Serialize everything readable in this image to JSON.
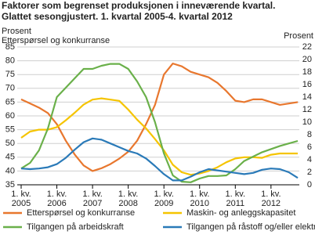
{
  "chart_data": {
    "type": "line",
    "title": "Faktorer som begrenset produksjonen i inneværende kvartal.",
    "subtitle": "Glattet sesongjustert. 1. kvartal 2005-4. kvartal 2012",
    "y_label": "Prosent",
    "y_series_label": "Etterspørsel og konkurranse",
    "y2_label": "Prosent",
    "categories": [
      "1. kv. 2005",
      null,
      null,
      null,
      "1. kv. 2006",
      null,
      null,
      null,
      "1. kv. 2007",
      null,
      null,
      null,
      "1. kv. 2008",
      null,
      null,
      null,
      "1. kv. 2009",
      null,
      null,
      null,
      "1. kv. 2010",
      null,
      null,
      null,
      "1. kv. 2011",
      null,
      null,
      null,
      "1. kv. 2012",
      null,
      null,
      null
    ],
    "ylim": [
      35,
      85
    ],
    "yticks": [
      35,
      40,
      45,
      50,
      55,
      60,
      65,
      70,
      75,
      80,
      85
    ],
    "y2lim": [
      0,
      22
    ],
    "y2ticks": [
      0,
      2,
      4,
      6,
      8,
      10,
      12,
      14,
      16,
      18,
      20,
      22
    ],
    "grid": true,
    "series": [
      {
        "name": "Etterspørsel og konkurranse",
        "color": "#e8772e",
        "values": [
          66,
          64.5,
          63,
          61,
          57,
          51,
          46,
          42,
          40,
          41,
          42.5,
          44.5,
          47,
          51,
          57,
          64,
          75,
          79,
          78,
          76,
          75,
          74,
          72,
          69,
          65.5,
          65,
          66,
          66,
          65,
          64,
          64.5,
          65
        ]
      },
      {
        "name": "Maskin- og anleggskapasitet",
        "color": "#f5c400",
        "axis": "y2",
        "values": [
          7.5,
          8.5,
          8.8,
          8.8,
          9.2,
          10.3,
          11.5,
          12.8,
          13.6,
          13.8,
          13.6,
          13.4,
          12,
          10.4,
          9,
          7.3,
          5.5,
          3.2,
          2.0,
          1.6,
          1.8,
          2.2,
          2.8,
          3.6,
          4.2,
          4.4,
          4.4,
          4.3,
          4.8,
          5.0,
          5.0,
          5.0
        ]
      },
      {
        "name": "Tilgangen på arbeidskraft",
        "color": "#6ab04a",
        "axis": "y2",
        "values": [
          2.6,
          3.5,
          5.5,
          9,
          14,
          15.5,
          17,
          18.5,
          18.5,
          19,
          19.3,
          19.3,
          18.5,
          16.5,
          14,
          10,
          5,
          1.5,
          0.5,
          0.4,
          1,
          1.4,
          1.4,
          1.5,
          2.5,
          3.8,
          4.5,
          5.2,
          5.7,
          6.2,
          6.6,
          7
        ]
      },
      {
        "name": "Tilgangen på råstoff og/eller elektrisk kraft",
        "color": "#2a7ab8",
        "axis": "y2",
        "values": [
          2.6,
          2.5,
          2.6,
          2.8,
          3.3,
          4.3,
          5.6,
          6.8,
          7.4,
          7.2,
          6.6,
          6,
          5.4,
          5,
          4.2,
          3,
          1.7,
          0.7,
          0.7,
          1.3,
          2,
          2.5,
          2.3,
          2.1,
          1.9,
          1.7,
          1.9,
          2.4,
          2.6,
          2.5,
          2,
          1.1
        ]
      }
    ]
  }
}
